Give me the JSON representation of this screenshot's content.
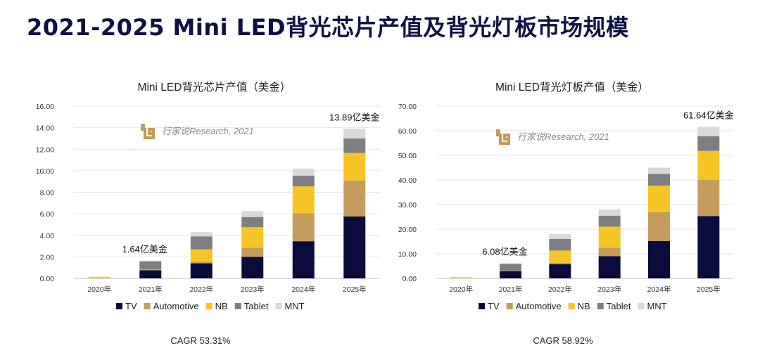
{
  "page_title": "2021-2025 Mini LED背光芯片产值及背光灯板市场规模",
  "watermark": "行家说Research, 2021",
  "colors": {
    "TV": "#0b0c3d",
    "Automotive": "#c69c5d",
    "NB": "#f7c525",
    "Tablet": "#7f7f7f",
    "MNT": "#d9d9d9",
    "watermark": "#c49a5a"
  },
  "chart_data": [
    {
      "type": "bar",
      "stacked": true,
      "title": "Mini LED背光芯片产值（美金）",
      "categories": [
        "2020年",
        "2021年",
        "2022年",
        "2023年",
        "2024年",
        "2025年"
      ],
      "ylim": [
        0,
        16
      ],
      "yticks": [
        "0.00",
        "2.00",
        "4.00",
        "6.00",
        "8.00",
        "10.00",
        "12.00",
        "14.00",
        "16.00"
      ],
      "ytick_values": [
        0,
        2,
        4,
        6,
        8,
        10,
        12,
        14,
        16
      ],
      "series": [
        {
          "name": "TV",
          "values": [
            0,
            0.75,
            1.4,
            2.0,
            3.45,
            5.75
          ]
        },
        {
          "name": "Automotive",
          "values": [
            0,
            0.05,
            0.15,
            0.85,
            2.6,
            3.35
          ]
        },
        {
          "name": "NB",
          "values": [
            0.15,
            0.02,
            1.15,
            1.9,
            2.5,
            2.55
          ]
        },
        {
          "name": "Tablet",
          "values": [
            0,
            0.77,
            1.2,
            0.95,
            1.0,
            1.35
          ]
        },
        {
          "name": "MNT",
          "values": [
            0,
            0.05,
            0.4,
            0.55,
            0.65,
            0.89
          ]
        }
      ],
      "annotations": [
        {
          "category": "2021年",
          "text": "1.64亿美金"
        },
        {
          "category": "2025年",
          "text": "13.89亿美金"
        }
      ],
      "cagr": "CAGR 53.31%",
      "grid": true,
      "legend": "bottom"
    },
    {
      "type": "bar",
      "stacked": true,
      "title": "Mini LED背光灯板产值（美金）",
      "categories": [
        "2020年",
        "2021年",
        "2022年",
        "2023年",
        "2024年",
        "2025年"
      ],
      "ylim": [
        0,
        70
      ],
      "yticks": [
        "0.00",
        "10.00",
        "20.00",
        "30.00",
        "40.00",
        "50.00",
        "60.00",
        "70.00"
      ],
      "ytick_values": [
        0,
        10,
        20,
        30,
        40,
        50,
        60,
        70
      ],
      "series": [
        {
          "name": "TV",
          "values": [
            0,
            3.0,
            5.8,
            9.0,
            15.2,
            25.3
          ]
        },
        {
          "name": "Automotive",
          "values": [
            0,
            0.1,
            0.5,
            3.5,
            11.7,
            14.8
          ]
        },
        {
          "name": "NB",
          "values": [
            0.5,
            0.1,
            5.0,
            8.5,
            10.8,
            11.7
          ]
        },
        {
          "name": "Tablet",
          "values": [
            0,
            2.78,
            4.7,
            4.5,
            4.8,
            6.0
          ]
        },
        {
          "name": "MNT",
          "values": [
            0,
            0.1,
            2.0,
            2.5,
            2.5,
            3.84
          ]
        }
      ],
      "annotations": [
        {
          "category": "2021年",
          "text": "6.08亿美金"
        },
        {
          "category": "2025年",
          "text": "61.64亿美金"
        }
      ],
      "cagr": "CAGR 58.92%",
      "grid": true,
      "legend": "bottom"
    }
  ]
}
